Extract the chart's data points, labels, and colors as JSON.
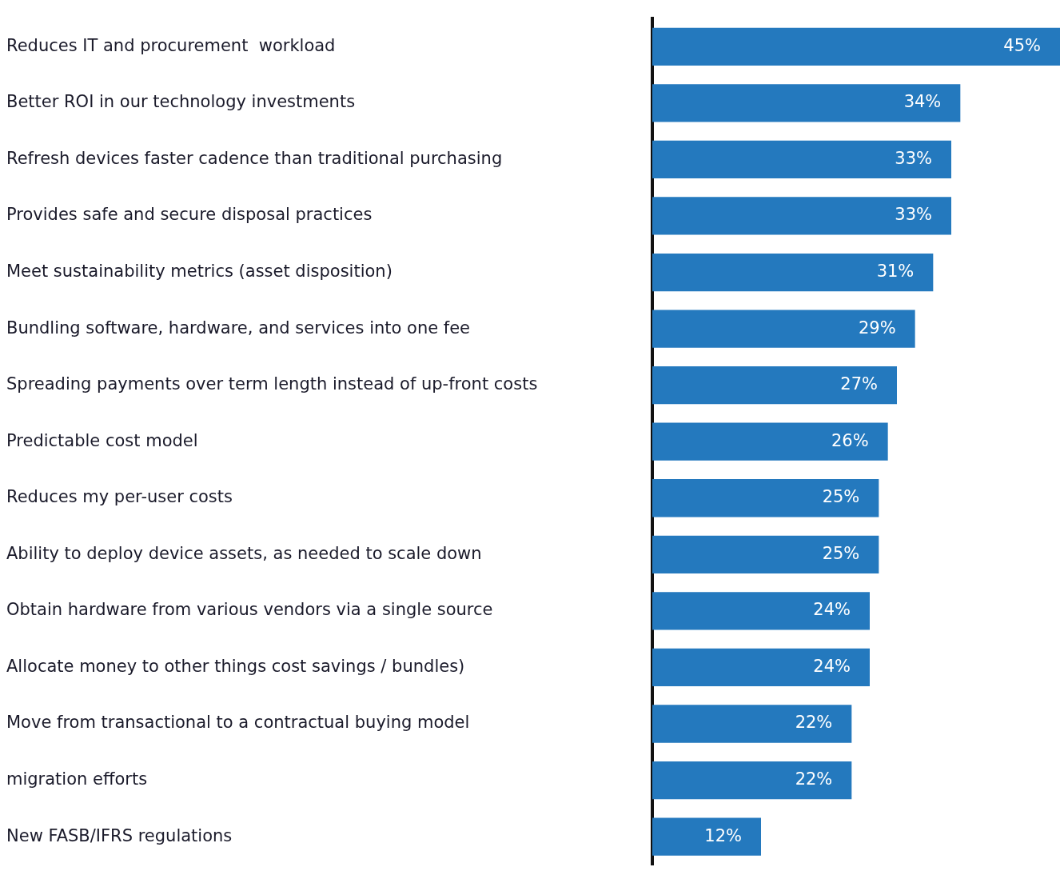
{
  "chart_data": {
    "type": "bar",
    "orientation": "horizontal",
    "categories": [
      "Reduces IT and procurement  workload",
      "Better ROI in our technology investments",
      "Refresh devices faster cadence than traditional purchasing",
      "Provides safe and secure disposal practices",
      "Meet sustainability metrics (asset disposition)",
      "Bundling software, hardware, and services into one fee",
      "Spreading payments over term length instead of up-front costs",
      "Predictable cost model",
      "Reduces my per-user costs",
      "Ability to deploy device assets, as needed to scale down",
      "Obtain hardware from various vendors via a single source",
      "Allocate money to other things cost savings / bundles)",
      "Move from transactional to a contractual buying model",
      "migration efforts",
      "New FASB/IFRS regulations"
    ],
    "values": [
      45,
      34,
      33,
      33,
      31,
      29,
      27,
      26,
      25,
      25,
      24,
      24,
      22,
      22,
      12
    ],
    "value_labels": [
      "45%",
      "34%",
      "33%",
      "33%",
      "31%",
      "29%",
      "27%",
      "26%",
      "25%",
      "25%",
      "24%",
      "24%",
      "22%",
      "22%",
      "12%"
    ],
    "color": "#2479be",
    "xlim": [
      0,
      45
    ]
  }
}
